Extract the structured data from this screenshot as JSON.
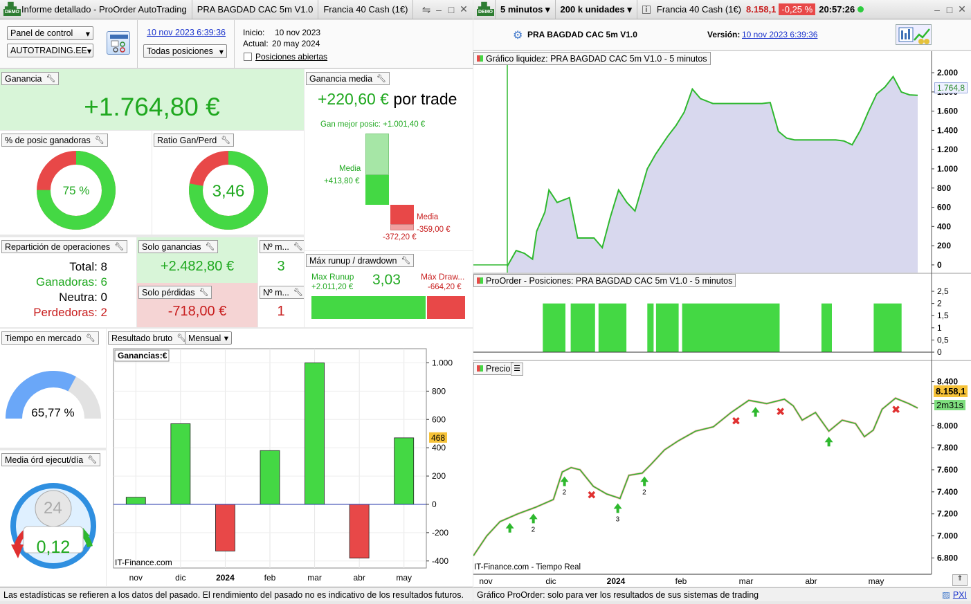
{
  "left_window": {
    "title": "Informe detallado - ProOrder AutoTrading",
    "tab_system": "PRA BAGDAD CAC 5m V1.0",
    "tab_instrument": "Francia 40 Cash (1€)",
    "demo_badge": "DEMO"
  },
  "right_window": {
    "timeframe": "5 minutos",
    "units": "200 k unidades",
    "instrument": "Francia 40 Cash (1€)",
    "price": "8.158,1",
    "change": "-0,25 %",
    "time": "20:57:26",
    "status_color": "#2ecc40"
  },
  "controls": {
    "panel_select": "Panel de control",
    "account_select": "AUTOTRADING.EE",
    "report_date": "10 nov 2023 6:39:36",
    "positions_select": "Todas posiciones",
    "inicio_label": "Inicio:",
    "inicio_value": "10 nov 2023",
    "actual_label": "Actual:",
    "actual_value": "20 may 2024",
    "open_positions_label": "Posiciones abiertas"
  },
  "ganancia": {
    "title": "Ganancia",
    "value": "+1.764,80 €"
  },
  "ganancia_media": {
    "title": "Ganancia media",
    "value": "+220,60 €",
    "suffix": "por trade",
    "best_label": "Gan mejor posic: +1.001,40 €",
    "media_win_label": "Media",
    "media_win_value": "+413,80 €",
    "media_loss_label": "Media",
    "media_loss_value": "-359,00 €",
    "worst_value": "-372,20 €"
  },
  "pct_winners": {
    "title": "% de posic ganadoras",
    "value": "75 %",
    "fraction": 0.75
  },
  "ratio": {
    "title": "Ratio Gan/Perd",
    "value": "3,46",
    "fraction": 0.776
  },
  "reparticion": {
    "title": "Repartición de operaciones",
    "total": "Total: 8",
    "winners": "Ganadoras: 6",
    "neutral": "Neutra: 0",
    "losers": "Perdedoras: 2"
  },
  "solo_ganancias": {
    "title": "Solo ganancias",
    "value": "+2.482,80 €",
    "count_title": "Nº m...",
    "count": "3"
  },
  "solo_perdidas": {
    "title": "Solo pérdidas",
    "value": "-718,00 €",
    "count_title": "Nº m...",
    "count": "1"
  },
  "runup": {
    "title": "Máx runup / drawdown",
    "runup_label": "Max Runup",
    "runup_value": "+2.011,20 €",
    "ratio": "3,03",
    "drawdown_label": "Máx Draw...",
    "drawdown_value": "-664,20 €",
    "runup_fraction": 0.752
  },
  "tiempo_mercado": {
    "title": "Tiempo en mercado",
    "value": "65,77 %",
    "fraction": 0.6577
  },
  "media_ordenes": {
    "title": "Media órd ejecut/día",
    "value": "0,12",
    "clock_label": "24"
  },
  "resultado_bruto": {
    "title": "Resultado bruto",
    "period_select": "Mensual",
    "legend": "Ganancias:€",
    "watermark": "IT-Finance.com",
    "current_marker": "468"
  },
  "chart_data": [
    {
      "type": "bar",
      "title": "Resultado bruto",
      "legend": "Ganancias:€",
      "categories": [
        "nov",
        "dic",
        "2024",
        "feb",
        "mar",
        "abr",
        "may"
      ],
      "values": [
        50,
        570,
        -330,
        380,
        1000,
        -380,
        470
      ],
      "ylim": [
        -450,
        1100
      ],
      "yticks": [
        1000,
        800,
        600,
        400,
        200,
        0,
        -200,
        -400
      ],
      "ytick_labels": [
        "1.000",
        "800",
        "600",
        "400",
        "200",
        "0",
        "-200",
        "-400"
      ],
      "grid": true
    },
    {
      "type": "area",
      "title": "Gráfico liquidez: PRA BAGDAD CAC 5m V1.0 - 5 minutos",
      "yticks": [
        2000,
        1800,
        1600,
        1400,
        1200,
        1000,
        800,
        600,
        400,
        200,
        0
      ],
      "ytick_labels": [
        "2.000",
        "1.800",
        "1.600",
        "1.400",
        "1.200",
        "1.000",
        "800",
        "600",
        "400",
        "200",
        "0"
      ],
      "ylim": [
        -80,
        2080
      ],
      "last_value": "1.764,8",
      "x": [
        0,
        0.02,
        0.04,
        0.06,
        0.07,
        0.09,
        0.1,
        0.12,
        0.15,
        0.17,
        0.19,
        0.21,
        0.23,
        0.25,
        0.27,
        0.29,
        0.31,
        0.34,
        0.36,
        0.39,
        0.41,
        0.43,
        0.45,
        0.47,
        0.5,
        0.53,
        0.56,
        0.59,
        0.62,
        0.64,
        0.66,
        0.68,
        0.7,
        0.72,
        0.74,
        0.76,
        0.78,
        0.8,
        0.82,
        0.84,
        0.86,
        0.88,
        0.9,
        0.92,
        0.94,
        0.96,
        0.98,
        1.0
      ],
      "y": [
        0,
        150,
        120,
        60,
        350,
        550,
        780,
        650,
        700,
        280,
        280,
        280,
        180,
        500,
        780,
        650,
        560,
        1000,
        1150,
        1340,
        1450,
        1590,
        1830,
        1730,
        1680,
        1680,
        1680,
        1680,
        1680,
        1690,
        1390,
        1320,
        1300,
        1300,
        1300,
        1300,
        1300,
        1300,
        1290,
        1250,
        1400,
        1600,
        1780,
        1850,
        1960,
        1800,
        1770,
        1765
      ]
    },
    {
      "type": "bar",
      "title": "ProOrder - Posiciones: PRA BAGDAD CAC 5m V1.0 - 5 minutos",
      "yticks": [
        2.5,
        2,
        1.5,
        1,
        0.5,
        0
      ],
      "ytick_labels": [
        "2,5",
        "2",
        "1,5",
        "1",
        "0,5",
        "0"
      ],
      "ylim": [
        0,
        2.7
      ],
      "position_ranges": [
        [
          0.1,
          0.165
        ],
        [
          0.18,
          0.25
        ],
        [
          0.26,
          0.34
        ],
        [
          0.4,
          0.418
        ],
        [
          0.425,
          0.49
        ],
        [
          0.5,
          0.78
        ],
        [
          0.9,
          0.93
        ],
        [
          1.05,
          1.13
        ]
      ],
      "position_value": 2
    },
    {
      "type": "line",
      "title": "Precio",
      "yticks": [
        8400,
        8200,
        8000,
        7800,
        7600,
        7400,
        7200,
        7000,
        6800
      ],
      "ytick_labels": [
        "8.400",
        "8.200",
        "8.000",
        "7.800",
        "7.600",
        "7.400",
        "7.200",
        "7.000",
        "6.800"
      ],
      "ylim": [
        6740,
        8460
      ],
      "xticks": [
        "nov",
        "dic",
        "2024",
        "feb",
        "mar",
        "abr",
        "may"
      ],
      "last_price": "8.158,1",
      "countdown": "2m31s",
      "watermark": "IT-Finance.com - Tiempo Real",
      "x": [
        0,
        0.03,
        0.06,
        0.1,
        0.14,
        0.18,
        0.2,
        0.22,
        0.24,
        0.27,
        0.3,
        0.33,
        0.35,
        0.38,
        0.4,
        0.43,
        0.46,
        0.5,
        0.54,
        0.58,
        0.62,
        0.66,
        0.7,
        0.72,
        0.74,
        0.77,
        0.8,
        0.83,
        0.86,
        0.88,
        0.9,
        0.92,
        0.95,
        0.98,
        1.0
      ],
      "y": [
        6820,
        7000,
        7130,
        7200,
        7260,
        7330,
        7580,
        7620,
        7600,
        7450,
        7380,
        7340,
        7550,
        7570,
        7650,
        7780,
        7860,
        7950,
        7990,
        8120,
        8230,
        8200,
        8240,
        8180,
        8050,
        8120,
        7950,
        8050,
        8020,
        7900,
        7960,
        8150,
        8250,
        8200,
        8160
      ],
      "markers": [
        {
          "x": 0.082,
          "kind": "buy"
        },
        {
          "x": 0.135,
          "kind": "buy",
          "label": "2"
        },
        {
          "x": 0.205,
          "kind": "buy",
          "label": "2"
        },
        {
          "x": 0.265,
          "kind": "exit"
        },
        {
          "x": 0.325,
          "kind": "buy",
          "label": "3"
        },
        {
          "x": 0.385,
          "kind": "buy",
          "label": "2"
        },
        {
          "x": 0.59,
          "kind": "exit"
        },
        {
          "x": 0.635,
          "kind": "buy"
        },
        {
          "x": 0.69,
          "kind": "exit"
        },
        {
          "x": 0.8,
          "kind": "buy"
        },
        {
          "x": 0.95,
          "kind": "exit"
        }
      ]
    }
  ],
  "right_header": {
    "system_name": "PRA BAGDAD CAC 5m V1.0",
    "version_label": "Versión:",
    "version_date": "10 nov 2023 6:39:36"
  },
  "footer_left": "Las estadísticas se refieren a los datos del pasado. El rendimiento del pasado no es indicativo de los resultados futuros.",
  "footer_right": "Gráfico ProOrder: solo para ver los resultados de sus sistemas de trading",
  "footer_pxi": "PXI",
  "colors": {
    "green": "#44d844",
    "red": "#e84848",
    "accent_link": "#1a33cc"
  }
}
